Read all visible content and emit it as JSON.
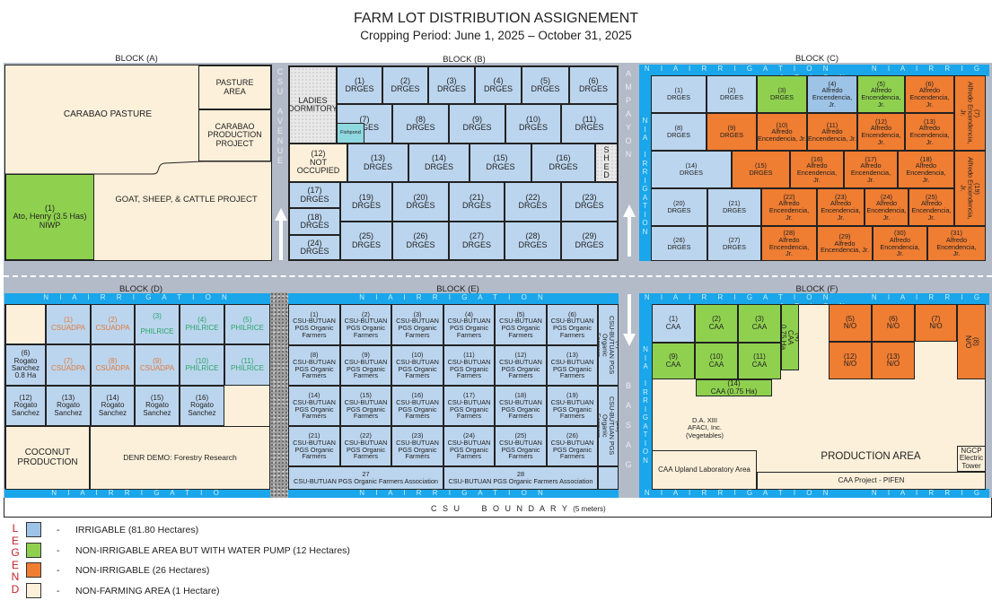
{
  "header": {
    "title": "FARM LOT DISTRIBUTION ASSIGNEMENT",
    "subtitle": "Cropping Period: June 1, 2025 – October 31, 2025"
  },
  "colors": {
    "irrigable": "#bcd5ee",
    "irrigable_alt": "#9dc3e6",
    "pump": "#8fd14f",
    "non_irrigable": "#ef7d32",
    "non_farming": "#fcf0da",
    "irrigation_canal": "#1aa6ea",
    "road": "#b3bbc8",
    "csuadpa_text": "#e07a3a",
    "philrice_text": "#2aa56b"
  },
  "roads": {
    "csu_avenue": "C\nS\nU\n\nA\nV\nE\nN\nU\nE",
    "ampayon": "A\nM\nP\nA\nY\nO\nN",
    "basag": "B\n\nA\n\nS\n\nA\n\nG",
    "boundary": "C S U     B O U N D A R Y",
    "boundary_note": "(5 meters)"
  },
  "irrigation": {
    "label": "N I A   I R R I G A T I O N",
    "label_cut": "N I A   I R R I G A T I O",
    "vertical": "N\nI\nA\n\nI\nR\nR\nI\nG\nA\nT\nI\nO\nN"
  },
  "blocks": {
    "A": {
      "label": "BLOCK (A)",
      "carabao_pasture": "CARABAO PASTURE",
      "goat_project": "GOAT, SHEEP, & CATTLE PROJECT",
      "lots": [
        {
          "text": "PASTURE\nAREA",
          "type": "nonfarm"
        },
        {
          "text": "CARABAO\nPRODUCTION\nPROJECT",
          "type": "nonfarm"
        },
        {
          "text": "(1)\nAto, Henry (3.5 Has)\nNIWP",
          "type": "pump"
        }
      ]
    },
    "B": {
      "label": "BLOCK (B)",
      "lots": [
        {
          "text": "LADIES\nDORMITORY",
          "type": "building"
        },
        {
          "text": "(1)\nDRGES",
          "type": "irrigable"
        },
        {
          "text": "(2)\nDRGES",
          "type": "irrigable"
        },
        {
          "text": "(3)\nDRGES",
          "type": "irrigable"
        },
        {
          "text": "(4)\nDRGES",
          "type": "irrigable"
        },
        {
          "text": "(5)\nDRGES",
          "type": "irrigable"
        },
        {
          "text": "(6)\nDRGES",
          "type": "irrigable"
        },
        {
          "text": "      (7)\n      DRGES",
          "type": "irrigable"
        },
        {
          "text": "(8)\nDRGES",
          "type": "irrigable"
        },
        {
          "text": "(9)\nDRGES",
          "type": "irrigable"
        },
        {
          "text": "(10)\nDRGES",
          "type": "irrigable"
        },
        {
          "text": "(11)\nDRGES",
          "type": "irrigable"
        },
        {
          "text": "Fishpond",
          "type": "fishpond"
        },
        {
          "text": "(12)\nNOT\nOCCUPIED",
          "type": "nonfarm"
        },
        {
          "text": "(13)\nDRGES",
          "type": "irrigable"
        },
        {
          "text": "(14)\nDRGES",
          "type": "irrigable"
        },
        {
          "text": "(15)\nDRGES",
          "type": "irrigable"
        },
        {
          "text": "(16)\nDRGES",
          "type": "irrigable"
        },
        {
          "text": "S\nH\nE\nD",
          "type": "building"
        },
        {
          "text": "(17)\nDRGES",
          "type": "irrigable"
        },
        {
          "text": "(18)\nDRGES",
          "type": "irrigable"
        },
        {
          "text": "(24)\nDRGES",
          "type": "irrigable"
        },
        {
          "text": "(19)\nDRGES",
          "type": "irrigable"
        },
        {
          "text": "(20)\nDRGES",
          "type": "irrigable"
        },
        {
          "text": "(21)\nDRGES",
          "type": "irrigable"
        },
        {
          "text": "(22)\nDRGES",
          "type": "irrigable"
        },
        {
          "text": "(23)\nDRGES",
          "type": "irrigable"
        },
        {
          "text": "(25)\nDRGES",
          "type": "irrigable"
        },
        {
          "text": "(26)\nDRGES",
          "type": "irrigable"
        },
        {
          "text": "(27)\nDRGES",
          "type": "irrigable"
        },
        {
          "text": "(28)\nDRGES",
          "type": "irrigable"
        },
        {
          "text": "(29)\nDRGES",
          "type": "irrigable"
        }
      ]
    },
    "C": {
      "label": "BLOCK (C)",
      "lots": [
        {
          "text": "(1)\nDRGES",
          "type": "irrigable"
        },
        {
          "text": "(2)\nDRGES",
          "type": "irrigable"
        },
        {
          "text": "(3)\nDRGES",
          "type": "pump"
        },
        {
          "text": "(4)\nAlfredo\nEncendencia,\nJr.",
          "type": "irrigable2"
        },
        {
          "text": "(5)\nAlfredo\nEncendencia, Jr.",
          "type": "pump"
        },
        {
          "text": "(6)\nAlfredo\nEncendencia, Jr.",
          "type": "nonirr"
        },
        {
          "text": "(7)\nAlfredo Encendencia,\nJr.",
          "type": "nonirr",
          "vertical": true
        },
        {
          "text": "(8)\nDRGES",
          "type": "irrigable"
        },
        {
          "text": "(9)\nDRGES",
          "type": "nonirr"
        },
        {
          "text": "(10)\nAlfredo\nEncendencia, Jr.",
          "type": "nonirr"
        },
        {
          "text": "(11)\nAlfredo\nEncendencia, Jr.",
          "type": "nonirr"
        },
        {
          "text": "(12)\nAlfredo\nEncendencia,\nJr.",
          "type": "nonirr"
        },
        {
          "text": "(13)\nAlfredo\nEncendencia,\nJr.",
          "type": "nonirr"
        },
        {
          "text": "(14)\nDRGES",
          "type": "irrigable"
        },
        {
          "text": "(15)\nDRGES",
          "type": "nonirr"
        },
        {
          "text": "(16)\nAlfredo\nEncendencia,\nJr.",
          "type": "nonirr"
        },
        {
          "text": "(17)\nAlfredo\nEncendencia,\nJr.",
          "type": "nonirr"
        },
        {
          "text": "(18)\nAlfredo\nEncendencia,\nJr.",
          "type": "nonirr"
        },
        {
          "text": "(19)\nAlfredo Encendencia,\nJr.",
          "type": "nonirr",
          "vertical": true
        },
        {
          "text": "(20)\nDRGES",
          "type": "irrigable"
        },
        {
          "text": "(21)\nDRGES",
          "type": "irrigable"
        },
        {
          "text": "(22)\nAlfredo\nEncendencia,\nJr.",
          "type": "nonirr"
        },
        {
          "text": "(23)\nAlfredo\nEncendencia, Jr.",
          "type": "nonirr"
        },
        {
          "text": "(24)\nAlfredo\nEncendencia, Jr.",
          "type": "nonirr"
        },
        {
          "text": "(25)\nAlfredo\nEncendencia, Jr.",
          "type": "nonirr"
        },
        {
          "text": "(26)\nDRGES",
          "type": "irrigable"
        },
        {
          "text": "(27)\nDRGES",
          "type": "irrigable"
        },
        {
          "text": "(28)\nAlfredo\nEncendencia,\nJr.",
          "type": "nonirr"
        },
        {
          "text": "(29)\nAlfredo\nEncendencia, Jr.",
          "type": "nonirr"
        },
        {
          "text": "(30)\nAlfredo\nEncendencia,\nJr.",
          "type": "nonirr"
        },
        {
          "text": "(31)\nAlfredo\nEncendencia,\nJr.",
          "type": "nonirr"
        }
      ]
    },
    "D": {
      "label": "BLOCK (D)",
      "lots": [
        {
          "text": "",
          "type": "nonfarm"
        },
        {
          "text": "(1)\nCSUADPA",
          "type": "irrigable",
          "tc": "csuadpa"
        },
        {
          "text": "(2)\nCSUADPA",
          "type": "irrigable",
          "tc": "csuadpa"
        },
        {
          "text": "(3)\n\nPHILRICE",
          "type": "irrigable",
          "tc": "philrice"
        },
        {
          "text": "(4)\nPHILRICE",
          "type": "irrigable",
          "tc": "philrice"
        },
        {
          "text": "(5)\nPHILRICE",
          "type": "irrigable",
          "tc": "philrice"
        },
        {
          "text": "(6)\nRogato\nSanchez\n0.8 Ha",
          "type": "irrigable"
        },
        {
          "text": "(7)\nCSUADPA",
          "type": "irrigable",
          "tc": "csuadpa"
        },
        {
          "text": "(8)\nCSUADPA",
          "type": "irrigable",
          "tc": "csuadpa"
        },
        {
          "text": "(9)\nCSUADPA",
          "type": "irrigable",
          "tc": "csuadpa"
        },
        {
          "text": "(10)\nPHILRICE",
          "type": "irrigable",
          "tc": "philrice"
        },
        {
          "text": "(11)\nPHILRICE",
          "type": "irrigable",
          "tc": "philrice"
        },
        {
          "text": "(12)\nRogato\nSanchez",
          "type": "irrigable"
        },
        {
          "text": "(13)\nRogato\nSanchez",
          "type": "irrigable"
        },
        {
          "text": "(14)\nRogato\nSanchez",
          "type": "irrigable"
        },
        {
          "text": "(15)\nRogato\nSanchez",
          "type": "irrigable"
        },
        {
          "text": "(16)\nRogato\nSanchez",
          "type": "irrigable"
        },
        {
          "text": "COCONUT\nPRODUCTION",
          "type": "nonfarm"
        },
        {
          "text": "DENR DEMO: Forestry Research",
          "type": "nonfarm"
        }
      ]
    },
    "E": {
      "label": "BLOCK (E)",
      "lots": [
        {
          "text": "(1)\nCSU-BUTUAN\nPGS Organic\nFarmers",
          "type": "irrigable"
        },
        {
          "text": "(2)\nCSU-BUTUAN\nPGS Organic\nFarmers",
          "type": "irrigable"
        },
        {
          "text": "(3)\nCSU-BUTUAN\nPGS Organic\nFarmers",
          "type": "irrigable"
        },
        {
          "text": "(4)\nCSU-BUTUAN\nPGS Organic\nFarmers",
          "type": "irrigable"
        },
        {
          "text": "(5)\nCSU-BUTUAN\nPGS Organic\nFarmers",
          "type": "irrigable"
        },
        {
          "text": "(6)\nCSU-BUTUAN\nPGS Organic\nFarmers",
          "type": "irrigable"
        },
        {
          "text": "(7)\nCSU-BUTUAN PGS Organic\nFarmers",
          "type": "irrigable",
          "vertical": true
        },
        {
          "text": "(8)\nCSU-BUTUAN\nPGS Organic\nFarmers",
          "type": "irrigable"
        },
        {
          "text": "(9)\nCSU-BUTUAN\nPGS Organic\nFarmers",
          "type": "irrigable"
        },
        {
          "text": "(10)\nCSU-BUTUAN\nPGS Organic\nFarmers",
          "type": "irrigable"
        },
        {
          "text": "(11)\nCSU-BUTUAN\nPGS Organic\nFarmers",
          "type": "irrigable"
        },
        {
          "text": "(12)\nCSU-BUTUAN\nPGS Organic\nFarmers",
          "type": "irrigable"
        },
        {
          "text": "(13)\nCSU-BUTUAN\nPGS Organic\nFarmers",
          "type": "irrigable"
        },
        {
          "text": "(14)\nCSU-BUTUAN\nPGS Organic\nFarmers",
          "type": "irrigable"
        },
        {
          "text": "(15)\nCSU-BUTUAN\nPGS Organic\nFarmers",
          "type": "irrigable"
        },
        {
          "text": "(16)\nCSU-BUTUAN\nPGS Organic\nFarmers",
          "type": "irrigable"
        },
        {
          "text": "(17)\nCSU-BUTUAN\nPGS Organic\nFarmers",
          "type": "irrigable"
        },
        {
          "text": "(18)\nCSU-BUTUAN\nPGS Organic\nFarmers",
          "type": "irrigable"
        },
        {
          "text": "(19)\nCSU-BUTUAN\nPGS Organic\nFarmers",
          "type": "irrigable"
        },
        {
          "text": "(20)\nCSU-BUTUAN PGS Organic\nFarmers",
          "type": "irrigable",
          "vertical": true
        },
        {
          "text": "(21)\nCSU-BUTUAN\nPGS Organic\nFarmers",
          "type": "irrigable"
        },
        {
          "text": "(22)\nCSU-BUTUAN\nPGS Organic\nFarmers",
          "type": "irrigable"
        },
        {
          "text": "(23)\nCSU-BUTUAN\nPGS Organic\nFarmers",
          "type": "irrigable"
        },
        {
          "text": "(24)\nCSU-BUTUAN\nPGS Organic\nFarmers",
          "type": "irrigable"
        },
        {
          "text": "(25)\nCSU-BUTUAN\nPGS Organic\nFarmers",
          "type": "irrigable"
        },
        {
          "text": "(26)\nCSU-BUTUAN\nPGS Organic\nFarmers",
          "type": "irrigable"
        },
        {
          "text": "27\nCSU-BUTUAN PGS Organic Farmers Association",
          "type": "irrigable"
        },
        {
          "text": "28\nCSU-BUTUAN PGS Organic Farmers Association",
          "type": "irrigable"
        },
        {
          "text": "",
          "type": "irrigable"
        }
      ]
    },
    "F": {
      "label": "BLOCK (F)",
      "da_label": "D.A. XIII\nAFACI, Inc.\n(Vegetables)",
      "production_area": "PRODUCTION AREA",
      "lots": [
        {
          "text": "(1)\nCAA",
          "type": "irrigable"
        },
        {
          "text": "(2)\nCAA",
          "type": "pump"
        },
        {
          "text": "(3)\nCAA",
          "type": "pump"
        },
        {
          "text": "(4)\nCAA\n0.75 Ha",
          "type": "pump",
          "vertical": true
        },
        {
          "text": "(9)\nCAA",
          "type": "pump"
        },
        {
          "text": "(10)\nCAA",
          "type": "pump"
        },
        {
          "text": "(11)\nCAA",
          "type": "pump"
        },
        {
          "text": "(14)\nCAA (0.75 Ha)",
          "type": "pump"
        },
        {
          "text": "(5)\nN/O",
          "type": "nonirr"
        },
        {
          "text": "(6)\nN/O",
          "type": "nonirr"
        },
        {
          "text": "(7)\nN/O",
          "type": "nonirr"
        },
        {
          "text": "(8)\nN/O",
          "type": "nonirr",
          "vertical": true
        },
        {
          "text": "(12)\nN/O",
          "type": "nonirr"
        },
        {
          "text": "(13)\nN/O",
          "type": "nonirr"
        },
        {
          "text": "NGCP\nElectric\nTower",
          "type": "nonfarm"
        },
        {
          "text": "CAA Upland Laboratory Area",
          "type": "nonfarm"
        },
        {
          "text": "CAA Project - PIFEN",
          "type": "nonfarm"
        }
      ]
    }
  },
  "legend": {
    "word": "L\nE\nG\nE\nN\nD",
    "dash": "-",
    "items": [
      {
        "label": "IRRIGABLE (81.80 Hectares)",
        "color": "#9dc3e6"
      },
      {
        "label": "NON-IRRIGABLE AREA BUT WITH WATER PUMP (12 Hectares)",
        "color": "#8fd14f"
      },
      {
        "label": "NON-IRRIGABLE (26 Hectares)",
        "color": "#ef7d32"
      },
      {
        "label": "NON-FARMING AREA (1 Hectare)",
        "color": "#fcf0da"
      }
    ]
  }
}
